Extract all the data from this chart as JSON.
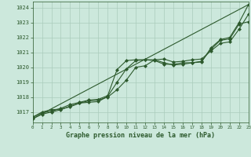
{
  "title": "Graphe pression niveau de la mer (hPa)",
  "background_color": "#cce8dc",
  "grid_color": "#aaccbb",
  "line_color": "#2d5a2d",
  "xlim": [
    0,
    23
  ],
  "ylim": [
    1016.3,
    1024.4
  ],
  "yticks": [
    1017,
    1018,
    1019,
    1020,
    1021,
    1022,
    1023,
    1024
  ],
  "xticks": [
    0,
    1,
    2,
    3,
    4,
    5,
    6,
    7,
    8,
    9,
    10,
    11,
    12,
    13,
    14,
    15,
    16,
    17,
    18,
    19,
    20,
    21,
    22,
    23
  ],
  "series": [
    {
      "x": [
        0,
        1,
        2,
        3,
        4,
        5,
        6,
        7,
        8,
        9,
        10,
        11,
        12,
        13,
        14,
        15,
        16,
        17,
        18,
        19,
        20,
        21,
        22,
        23
      ],
      "y": [
        1016.65,
        1016.95,
        1017.05,
        1017.25,
        1017.5,
        1017.65,
        1017.8,
        1017.85,
        1018.1,
        1019.85,
        1020.45,
        1020.5,
        1020.5,
        1020.45,
        1020.2,
        1020.2,
        1020.3,
        1020.3,
        1020.35,
        1021.3,
        1021.85,
        1022.0,
        1023.0,
        1024.2
      ],
      "marker": "D",
      "markersize": 2.0,
      "linewidth": 0.8
    },
    {
      "x": [
        0,
        1,
        2,
        3,
        4,
        5,
        6,
        7,
        8,
        9,
        10,
        11,
        12,
        13,
        14,
        15,
        16,
        17,
        18,
        19,
        20,
        21,
        22,
        23
      ],
      "y": [
        1016.65,
        1017.0,
        1017.15,
        1017.2,
        1017.35,
        1017.6,
        1017.65,
        1017.7,
        1018.05,
        1019.0,
        1019.9,
        1020.45,
        1020.5,
        1020.5,
        1020.3,
        1020.15,
        1020.2,
        1020.3,
        1020.4,
        1021.2,
        1021.8,
        1021.9,
        1022.9,
        1023.05
      ],
      "marker": "D",
      "markersize": 2.0,
      "linewidth": 0.8
    },
    {
      "x": [
        0,
        1,
        2,
        3,
        4,
        5,
        6,
        7,
        8,
        9,
        10,
        11,
        12,
        13,
        14,
        15,
        16,
        17,
        18,
        19,
        20,
        21,
        22,
        23
      ],
      "y": [
        1016.55,
        1016.85,
        1017.0,
        1017.15,
        1017.4,
        1017.6,
        1017.75,
        1017.8,
        1018.0,
        1018.5,
        1019.15,
        1020.0,
        1020.1,
        1020.5,
        1020.55,
        1020.35,
        1020.4,
        1020.5,
        1020.55,
        1021.1,
        1021.6,
        1021.7,
        1022.55,
        1023.55
      ],
      "marker": "D",
      "markersize": 2.0,
      "linewidth": 0.8
    },
    {
      "x": [
        0,
        23
      ],
      "y": [
        1016.55,
        1024.2
      ],
      "marker": null,
      "markersize": 0,
      "linewidth": 0.8,
      "linestyle": "-"
    }
  ]
}
